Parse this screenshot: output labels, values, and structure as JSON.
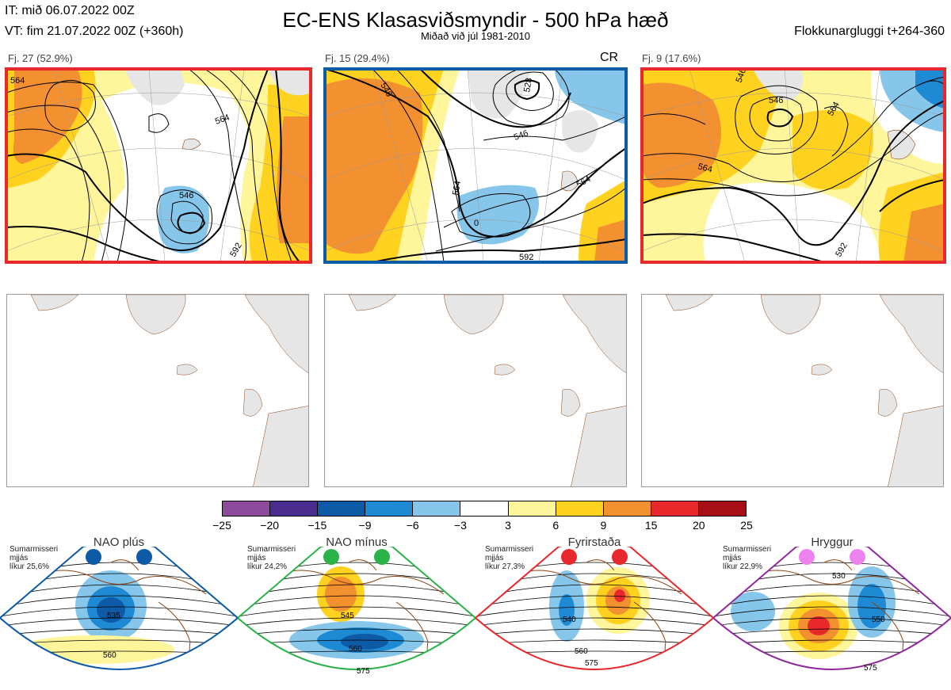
{
  "header": {
    "it_line": "IT: mið 06.07.2022 00Z",
    "vt_line": "VT: fim 21.07.2022 00Z  (+360h)",
    "title": "EC-ENS Klasasviðsmyndir - 500 hPa hæð",
    "subtitle": "Miðað við júl 1981-2010",
    "window": "Flokkunargluggi t+264-360"
  },
  "clusters": [
    {
      "label": "Fj. 27 (52.9%)",
      "regime_tag": "",
      "frame_color": "#e8282b",
      "contours": [
        "564",
        "546",
        "564",
        "592"
      ]
    },
    {
      "label": "Fj. 15 (29.4%)",
      "regime_tag": "CR",
      "frame_color": "#0d5aa7",
      "contours": [
        "546",
        "564",
        "528",
        "546",
        "564",
        "0",
        "592"
      ]
    },
    {
      "label": "Fj. 9 (17.6%)",
      "regime_tag": "",
      "frame_color": "#e8282b",
      "contours": [
        "546",
        "564",
        "546",
        "564",
        "592"
      ]
    }
  ],
  "colorbar": {
    "ticks": [
      "−25",
      "−20",
      "−15",
      "−9",
      "−6",
      "−3",
      "3",
      "6",
      "9",
      "15",
      "20",
      "25"
    ],
    "colors": [
      "#8e4a9c",
      "#4a2d8f",
      "#0d5aa7",
      "#1e8ad3",
      "#86c6ea",
      "#ffffff",
      "#fff59a",
      "#ffd21f",
      "#f39030",
      "#e8282b",
      "#a50f15"
    ]
  },
  "regimes": [
    {
      "name": "NAO plús",
      "season": "Sumarmisseri",
      "scale": "mjjás",
      "likelihood": "líkur 25,6%",
      "dot_color": "#0d5aa7",
      "frame_color": "#0d5aa7",
      "contours": [
        "535",
        "560"
      ]
    },
    {
      "name": "NAO mínus",
      "season": "Sumarmisseri",
      "scale": "mjjás",
      "likelihood": "líkur 24,2%",
      "dot_color": "#2bb34a",
      "frame_color": "#2bb34a",
      "contours": [
        "545",
        "560",
        "575"
      ]
    },
    {
      "name": "Fyrirstaða",
      "season": "Sumarmisseri",
      "scale": "mjjás",
      "likelihood": "líkur 27,3%",
      "dot_color": "#e8282b",
      "frame_color": "#e8282b",
      "contours": [
        "540",
        "560",
        "575"
      ]
    },
    {
      "name": "Hryggur",
      "season": "Sumarmisseri",
      "scale": "mjjás",
      "likelihood": "líkur 22,9%",
      "dot_color": "#ee82ee",
      "frame_color": "#8e2a9c",
      "contours": [
        "530",
        "550",
        "575"
      ]
    }
  ]
}
